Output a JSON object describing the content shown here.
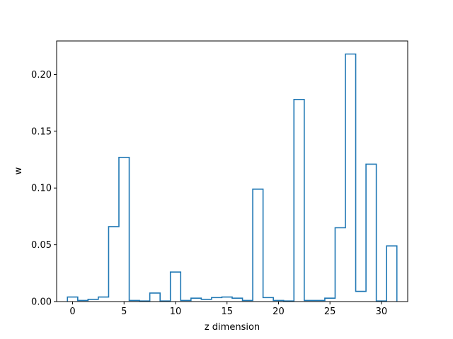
{
  "chart_data": {
    "type": "step",
    "title": "",
    "xlabel": "z dimension",
    "ylabel": "w",
    "xlim": [
      -1.55,
      32.55
    ],
    "ylim": [
      0,
      0.2295
    ],
    "x_ticks": [
      0,
      5,
      10,
      15,
      20,
      25,
      30
    ],
    "y_ticks": [
      0.0,
      0.05,
      0.1,
      0.15,
      0.2
    ],
    "y_tick_labels": [
      "0.00",
      "0.05",
      "0.10",
      "0.15",
      "0.20"
    ],
    "grid": false,
    "line_color": "#1f77b4",
    "x": [
      0,
      1,
      2,
      3,
      4,
      5,
      6,
      7,
      8,
      9,
      10,
      11,
      12,
      13,
      14,
      15,
      16,
      17,
      18,
      19,
      20,
      21,
      22,
      23,
      24,
      25,
      26,
      27,
      28,
      29,
      30,
      31
    ],
    "values": [
      0.004,
      0.001,
      0.002,
      0.004,
      0.066,
      0.127,
      0.001,
      0.0005,
      0.0075,
      0.0005,
      0.026,
      0.001,
      0.003,
      0.002,
      0.0035,
      0.004,
      0.003,
      0.001,
      0.099,
      0.0035,
      0.001,
      0.0005,
      0.178,
      0.001,
      0.001,
      0.003,
      0.065,
      0.218,
      0.009,
      0.121,
      0.0005,
      0.049
    ]
  }
}
